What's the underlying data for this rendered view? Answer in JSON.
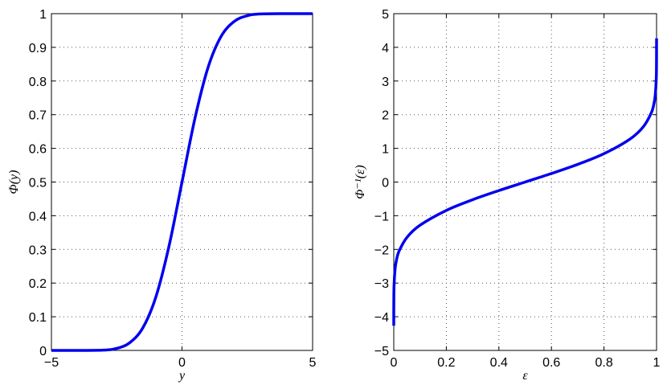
{
  "chart_data": [
    {
      "type": "line",
      "xlabel": "y",
      "ylabel": "Φ(y)",
      "xlim": [
        -5,
        5
      ],
      "ylim": [
        0,
        1
      ],
      "xticks": [
        -5,
        0,
        5
      ],
      "yticks": [
        0,
        0.1,
        0.2,
        0.3,
        0.4,
        0.5,
        0.6,
        0.7,
        0.8,
        0.9,
        1
      ],
      "xtick_labels": [
        "−5",
        "0",
        "5"
      ],
      "ytick_labels": [
        "0",
        "0.1",
        "0.2",
        "0.3",
        "0.4",
        "0.5",
        "0.6",
        "0.7",
        "0.8",
        "0.9",
        "1"
      ],
      "grid": true,
      "series": [
        {
          "color": "#0000ee",
          "x": [
            -5,
            -4,
            -3,
            -2.5,
            -2,
            -1.5,
            -1,
            -0.5,
            0,
            0.5,
            1,
            1.5,
            2,
            2.5,
            3,
            4,
            5
          ],
          "y": [
            0.0,
            0.0,
            0.001,
            0.006,
            0.023,
            0.067,
            0.159,
            0.309,
            0.5,
            0.691,
            0.841,
            0.933,
            0.977,
            0.994,
            0.999,
            1.0,
            1.0
          ]
        }
      ]
    },
    {
      "type": "line",
      "xlabel": "ε",
      "ylabel": "Φ⁻¹(ε)",
      "xlim": [
        0,
        1
      ],
      "ylim": [
        -5,
        5
      ],
      "xticks": [
        0,
        0.2,
        0.4,
        0.6,
        0.8,
        1
      ],
      "yticks": [
        -5,
        -4,
        -3,
        -2,
        -1,
        0,
        1,
        2,
        3,
        4,
        5
      ],
      "xtick_labels": [
        "0",
        "0.2",
        "0.4",
        "0.6",
        "0.8",
        "1"
      ],
      "ytick_labels": [
        "−5",
        "−4",
        "−3",
        "−2",
        "−1",
        "0",
        "1",
        "2",
        "3",
        "4",
        "5"
      ],
      "grid": true,
      "series": [
        {
          "color": "#0000ee",
          "x": [
            1e-05,
            0.0001,
            0.001,
            0.005,
            0.01,
            0.02,
            0.05,
            0.1,
            0.2,
            0.3,
            0.4,
            0.5,
            0.6,
            0.7,
            0.8,
            0.9,
            0.95,
            0.98,
            0.99,
            0.995,
            0.999,
            0.9999,
            0.99999
          ],
          "y": [
            -4.265,
            -3.719,
            -3.09,
            -2.576,
            -2.326,
            -2.054,
            -1.645,
            -1.282,
            -0.842,
            -0.524,
            -0.253,
            0.0,
            0.253,
            0.524,
            0.842,
            1.282,
            1.645,
            2.054,
            2.326,
            2.576,
            3.09,
            3.719,
            4.265
          ]
        }
      ]
    }
  ]
}
